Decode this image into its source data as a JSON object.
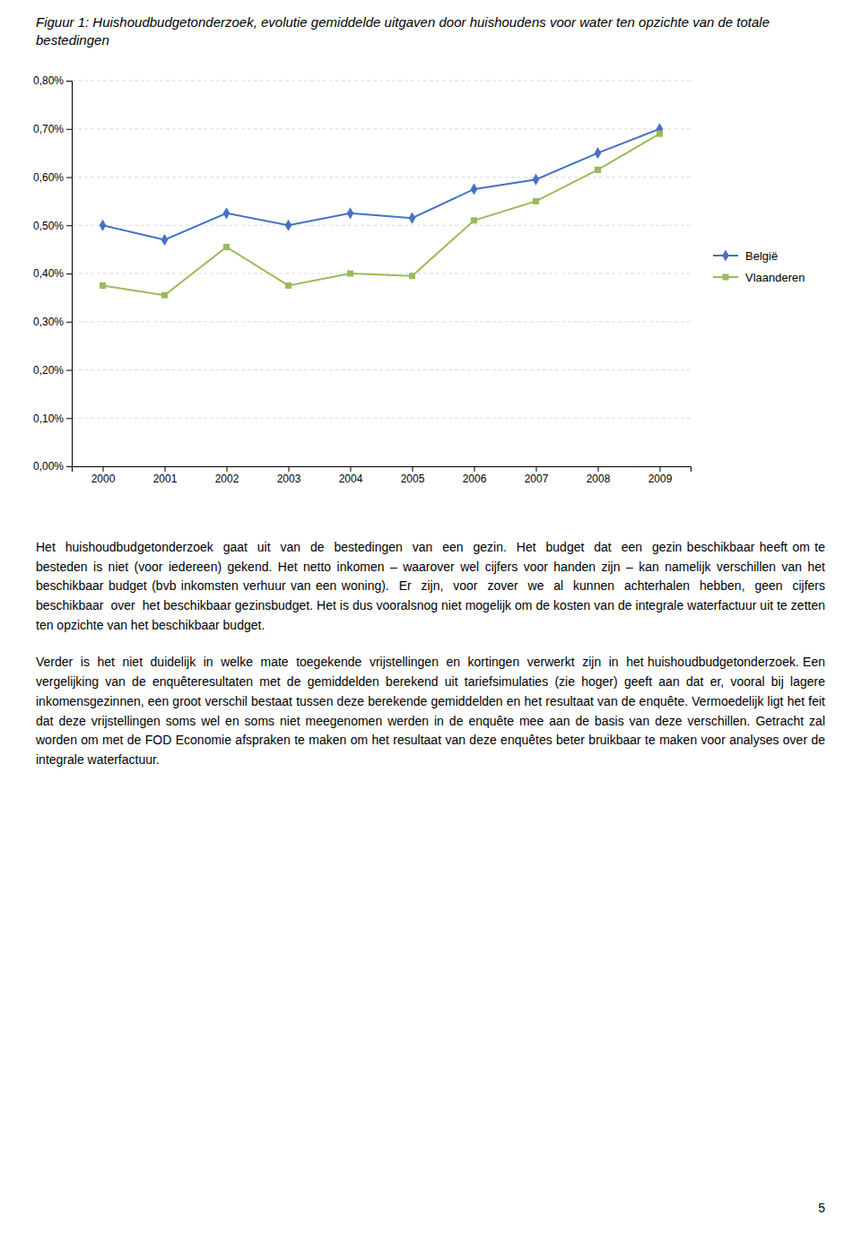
{
  "chart_data": {
    "type": "line",
    "title": "Figuur 1: Huishoudbudgetonderzoek, evolutie gemiddelde uitgaven door huishoudens voor water ten opzichte van de totale bestedingen",
    "x": [
      2000,
      2001,
      2002,
      2003,
      2004,
      2005,
      2006,
      2007,
      2008,
      2009
    ],
    "series": [
      {
        "name": "België",
        "color": "#4472C4",
        "marker": "diamond",
        "values": [
          0.005,
          0.0047,
          0.00525,
          0.005,
          0.00525,
          0.00515,
          0.00575,
          0.00595,
          0.0065,
          0.007
        ]
      },
      {
        "name": "Vlaanderen",
        "color": "#9BBB59",
        "marker": "square",
        "values": [
          0.00375,
          0.00355,
          0.00455,
          0.00375,
          0.004,
          0.00395,
          0.0051,
          0.0055,
          0.00615,
          0.0069
        ]
      }
    ],
    "xlim": [
      1999.5,
      2009.5
    ],
    "xticks": [
      2000,
      2001,
      2002,
      2003,
      2004,
      2005,
      2006,
      2007,
      2008,
      2009
    ],
    "ylim": [
      0.0,
      0.008
    ],
    "yticks": [
      {
        "value": 0.0,
        "label": "0,00%"
      },
      {
        "value": 0.001,
        "label": "0,10%"
      },
      {
        "value": 0.002,
        "label": "0,20%"
      },
      {
        "value": 0.003,
        "label": "0,30%"
      },
      {
        "value": 0.004,
        "label": "0,40%"
      },
      {
        "value": 0.005,
        "label": "0,50%"
      },
      {
        "value": 0.006,
        "label": "0,60%"
      },
      {
        "value": 0.007,
        "label": "0,70%"
      },
      {
        "value": 0.008,
        "label": "0,80%"
      }
    ],
    "grid": true,
    "legend": "right",
    "annotations": [
      "Het  huishoudbudgetonderzoek  gaat  uit  van  de  bestedingen  van  een  gezin.  Het  budget  dat  een  gezin beschikbaar heeft om te besteden is niet (voor iedereen) gekend. Het netto inkomen – waarover wel cijfers voor handen zijn – kan namelijk verschillen van het beschikbaar budget (bvb inkomsten verhuur van een woning).  Er  zijn,  voor  zover  we  al  kunnen  achterhalen  hebben,  geen  cijfers  beschikbaar  over  het beschikbaar gezinsbudget. Het is dus vooralsnog niet mogelijk om de kosten van de integrale waterfactuur uit te zetten ten opzichte van het beschikbaar budget.",
      "Verder  is  het  niet  duidelijk  in  welke  mate  toegekende  vrijstellingen  en  kortingen  verwerkt  zijn  in  het huishoudbudgetonderzoek. Een vergelijking van de enquêteresultaten met de gemiddelden berekend uit tariefsimulaties (zie hoger) geeft aan dat er, vooral bij lagere inkomensgezinnen, een groot verschil bestaat tussen deze berekende gemiddelden en het resultaat van de enquête. Vermoedelijk ligt het feit dat deze vrijstellingen soms wel en soms niet meegenomen werden in de enquête mee aan de basis van deze verschillen. Getracht zal worden om met de FOD Economie afspraken te maken om het resultaat van deze enquêtes beter bruikbaar te maken voor analyses over de integrale waterfactuur.",
      "5"
    ]
  }
}
